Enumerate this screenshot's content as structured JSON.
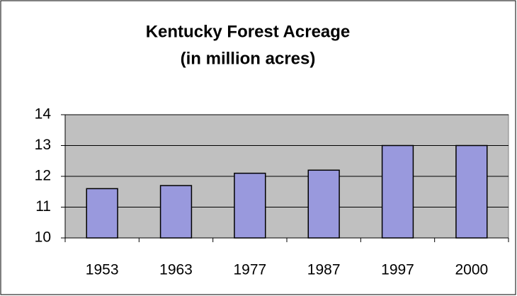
{
  "chart_data": {
    "type": "bar",
    "title": "Kentucky Forest Acreage",
    "subtitle": "(in million acres)",
    "categories": [
      "1953",
      "1963",
      "1977",
      "1987",
      "1997",
      "2000"
    ],
    "values": [
      11.6,
      11.7,
      12.1,
      12.2,
      13.0,
      13.0
    ],
    "color": "#9999dd",
    "ylim": [
      10,
      14
    ],
    "yticks": [
      10,
      11,
      12,
      13,
      14
    ],
    "grid": true
  }
}
